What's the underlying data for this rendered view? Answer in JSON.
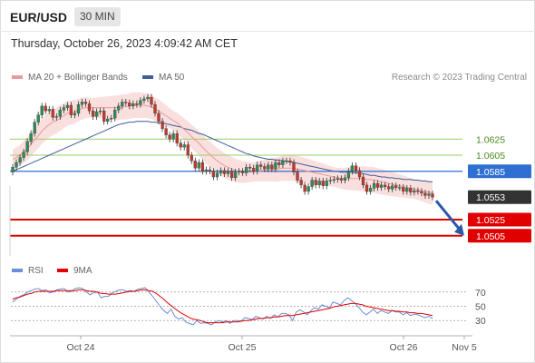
{
  "header": {
    "symbol": "EUR/USD",
    "timeframe": "30 MIN",
    "timestamp": "Thursday, October 26, 2023 4:09:42 AM CET",
    "credit": "Research © 2023 Trading Central"
  },
  "legend": {
    "ma20_label": "MA 20 + Bollinger Bands",
    "ma50_label": "MA 50",
    "rsi_label": "RSI",
    "ma9_label": "9MA"
  },
  "colors": {
    "bull": "#2e8b57",
    "bear": "#c0392b",
    "ma20": "#e99a9a",
    "bollinger": "#f7c9c9",
    "ma50": "#3d5f9e",
    "resistance": "#9ccc65",
    "support": "#e00000",
    "pivot": "#2f6fd1",
    "last": "#333333",
    "rsi": "#6a8fd6",
    "rsi_ma": "#e00000",
    "arrow": "#2a58a8"
  },
  "chart_data": [
    {
      "type": "candlestick",
      "title": "EUR/USD",
      "timeframe": "30 MIN",
      "x_ticks": [
        "Oct 24",
        "Oct 25",
        "Oct 26",
        "Nov 5"
      ],
      "ylim": [
        1.048,
        1.0685
      ],
      "levels": [
        {
          "label": "1.0625",
          "value": 1.0625,
          "kind": "resistance"
        },
        {
          "label": "1.0605",
          "value": 1.0605,
          "kind": "resistance"
        },
        {
          "label": "1.0585",
          "value": 1.0585,
          "kind": "pivot"
        },
        {
          "label": "1.0553",
          "value": 1.0553,
          "kind": "last"
        },
        {
          "label": "1.0525",
          "value": 1.0525,
          "kind": "support"
        },
        {
          "label": "1.0505",
          "value": 1.0505,
          "kind": "support"
        }
      ],
      "close": [
        1.059,
        1.0596,
        1.0602,
        1.0609,
        1.0622,
        1.0632,
        1.0646,
        1.0655,
        1.0666,
        1.066,
        1.0662,
        1.0652,
        1.0653,
        1.0661,
        1.0664,
        1.0667,
        1.0655,
        1.0657,
        1.0668,
        1.0671,
        1.0669,
        1.066,
        1.0653,
        1.0659,
        1.066,
        1.0647,
        1.065,
        1.0651,
        1.0661,
        1.0666,
        1.0671,
        1.067,
        1.0666,
        1.0669,
        1.0668,
        1.0673,
        1.0675,
        1.0677,
        1.0668,
        1.0657,
        1.0647,
        1.0638,
        1.063,
        1.0625,
        1.0632,
        1.062,
        1.0615,
        1.0618,
        1.0605,
        1.0598,
        1.0589,
        1.0596,
        1.0585,
        1.0587,
        1.0585,
        1.0578,
        1.0583,
        1.0586,
        1.0582,
        1.0585,
        1.0577,
        1.0584,
        1.0585,
        1.0583,
        1.059,
        1.0589,
        1.0585,
        1.0593,
        1.0591,
        1.0588,
        1.0593,
        1.0588,
        1.0596,
        1.0593,
        1.0598,
        1.0598,
        1.0596,
        1.0584,
        1.0574,
        1.0568,
        1.056,
        1.0566,
        1.0574,
        1.0568,
        1.0573,
        1.0567,
        1.0573,
        1.0574,
        1.0575,
        1.0576,
        1.0574,
        1.0577,
        1.0585,
        1.0592,
        1.0586,
        1.0578,
        1.0568,
        1.056,
        1.0564,
        1.057,
        1.0565,
        1.0568,
        1.0566,
        1.0563,
        1.0567,
        1.0565,
        1.0565,
        1.056,
        1.0564,
        1.0559,
        1.0561,
        1.056,
        1.0558,
        1.0555,
        1.0557,
        1.0553
      ],
      "ma20": [
        1.06,
        1.0602,
        1.0605,
        1.0609,
        1.0613,
        1.0618,
        1.0624,
        1.0629,
        1.0635,
        1.0639,
        1.0643,
        1.0646,
        1.0648,
        1.0651,
        1.0654,
        1.0657,
        1.0658,
        1.0659,
        1.0661,
        1.0663,
        1.0664,
        1.0664,
        1.0664,
        1.0664,
        1.0664,
        1.0664,
        1.0664,
        1.0664,
        1.0664,
        1.0664,
        1.0665,
        1.0665,
        1.0666,
        1.0667,
        1.0667,
        1.0667,
        1.0667,
        1.0666,
        1.0665,
        1.0662,
        1.066,
        1.0657,
        1.0654,
        1.0651,
        1.0648,
        1.0645,
        1.0641,
        1.0637,
        1.0633,
        1.0628,
        1.0624,
        1.062,
        1.0615,
        1.061,
        1.0606,
        1.0602,
        1.0598,
        1.0595,
        1.0592,
        1.059,
        1.0588,
        1.0586,
        1.0585,
        1.0584,
        1.0584,
        1.0584,
        1.0584,
        1.0585,
        1.0586,
        1.0586,
        1.0587,
        1.0587,
        1.0587,
        1.0588,
        1.0589,
        1.0589,
        1.0589,
        1.0589,
        1.0588,
        1.0587,
        1.0586,
        1.0585,
        1.0584,
        1.0583,
        1.0582,
        1.0581,
        1.058,
        1.0579,
        1.0578,
        1.0577,
        1.0576,
        1.0576,
        1.0576,
        1.0576,
        1.0576,
        1.0576,
        1.0576,
        1.0575,
        1.0575,
        1.0574,
        1.0573,
        1.0572,
        1.0571,
        1.057,
        1.0569,
        1.0568,
        1.0567,
        1.0566,
        1.0565,
        1.0564,
        1.0563,
        1.0562,
        1.0561,
        1.056,
        1.0559,
        1.0558
      ],
      "ma50": [
        1.0585,
        1.0587,
        1.0589,
        1.0591,
        1.0593,
        1.0595,
        1.0597,
        1.0599,
        1.0601,
        1.0603,
        1.0605,
        1.0607,
        1.0609,
        1.0611,
        1.0613,
        1.0615,
        1.0617,
        1.0619,
        1.0621,
        1.0623,
        1.0625,
        1.0627,
        1.0629,
        1.0631,
        1.0633,
        1.0635,
        1.0637,
        1.0639,
        1.0641,
        1.0643,
        1.0644,
        1.0645,
        1.0646,
        1.0646,
        1.0647,
        1.0647,
        1.0647,
        1.0647,
        1.0646,
        1.0646,
        1.0645,
        1.0645,
        1.0644,
        1.0643,
        1.0642,
        1.0641,
        1.064,
        1.0638,
        1.0637,
        1.0636,
        1.0634,
        1.0632,
        1.0631,
        1.0629,
        1.0627,
        1.0625,
        1.0623,
        1.0621,
        1.0619,
        1.0617,
        1.0615,
        1.0613,
        1.0611,
        1.0609,
        1.0607,
        1.0606,
        1.0604,
        1.0603,
        1.0602,
        1.0601,
        1.06,
        1.06,
        1.0599,
        1.0599,
        1.0598,
        1.0598,
        1.0597,
        1.0596,
        1.0595,
        1.0594,
        1.0593,
        1.0592,
        1.0591,
        1.059,
        1.0589,
        1.0588,
        1.0587,
        1.0586,
        1.0585,
        1.0585,
        1.0584,
        1.0584,
        1.0584,
        1.0584,
        1.0583,
        1.0583,
        1.0582,
        1.0581,
        1.058,
        1.058,
        1.0579,
        1.0578,
        1.0578,
        1.0577,
        1.0577,
        1.0576,
        1.0576,
        1.0575,
        1.0575,
        1.0575,
        1.0574,
        1.0574,
        1.0573,
        1.0573,
        1.0572,
        1.0572
      ]
    },
    {
      "type": "line",
      "title": "RSI",
      "ylim": [
        15,
        85
      ],
      "y_ticks": [
        30,
        50,
        70
      ],
      "series": [
        {
          "name": "RSI",
          "values": [
            56,
            60,
            64,
            66,
            70,
            72,
            74,
            75,
            72,
            73,
            69,
            70,
            73,
            74,
            75,
            70,
            71,
            75,
            76,
            75,
            70,
            66,
            69,
            70,
            62,
            64,
            64,
            69,
            71,
            73,
            73,
            71,
            72,
            71,
            74,
            75,
            76,
            70,
            64,
            57,
            50,
            44,
            40,
            46,
            36,
            32,
            34,
            28,
            26,
            24,
            30,
            26,
            27,
            26,
            24,
            28,
            30,
            28,
            30,
            26,
            30,
            30,
            29,
            34,
            33,
            31,
            36,
            34,
            32,
            36,
            33,
            38,
            35,
            40,
            40,
            38,
            30,
            42,
            45,
            42,
            38,
            44,
            48,
            46,
            52,
            50,
            48,
            56,
            54,
            52,
            58,
            62,
            58,
            54,
            48,
            42,
            38,
            42,
            46,
            40,
            44,
            42,
            40,
            44,
            42,
            42,
            38,
            41,
            37,
            39,
            38,
            36,
            34,
            36,
            33
          ]
        },
        {
          "name": "9MA",
          "values": [
            60,
            62,
            63,
            65,
            67,
            68,
            70,
            71,
            71,
            71,
            71,
            71,
            72,
            72,
            72,
            72,
            72,
            72,
            73,
            73,
            72,
            71,
            71,
            70,
            68,
            68,
            67,
            67,
            67,
            68,
            69,
            70,
            71,
            71,
            72,
            73,
            73,
            72,
            71,
            68,
            64,
            60,
            55,
            51,
            47,
            43,
            40,
            37,
            34,
            32,
            31,
            30,
            28,
            27,
            27,
            27,
            27,
            27,
            28,
            28,
            28,
            28,
            29,
            30,
            30,
            31,
            32,
            33,
            33,
            34,
            34,
            35,
            35,
            36,
            37,
            37,
            37,
            38,
            39,
            40,
            41,
            42,
            43,
            44,
            45,
            46,
            47,
            49,
            50,
            51,
            52,
            53,
            54,
            54,
            53,
            52,
            50,
            49,
            48,
            47,
            46,
            45,
            44,
            44,
            43,
            43,
            42,
            42,
            41,
            41,
            40,
            40,
            39,
            38,
            37
          ]
        }
      ]
    }
  ]
}
